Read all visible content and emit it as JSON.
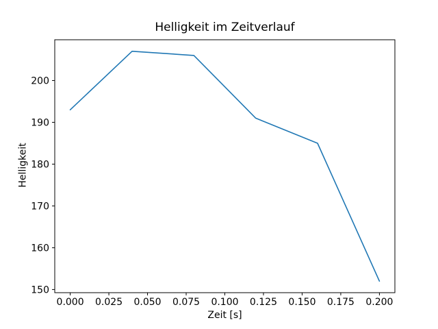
{
  "chart_data": {
    "type": "line",
    "title": "Helligkeit im Zeitverlauf",
    "xlabel": "Zeit [s]",
    "ylabel": "Helligkeit",
    "x": [
      0.0,
      0.04,
      0.08,
      0.12,
      0.16,
      0.2
    ],
    "series": [
      {
        "name": "Helligkeit",
        "values": [
          193,
          207,
          206,
          191,
          185,
          152
        ]
      }
    ],
    "x_ticks": [
      0.0,
      0.025,
      0.05,
      0.075,
      0.1,
      0.125,
      0.15,
      0.175,
      0.2
    ],
    "x_tick_labels": [
      "0.000",
      "0.025",
      "0.050",
      "0.075",
      "0.100",
      "0.125",
      "0.150",
      "0.175",
      "0.200"
    ],
    "y_ticks": [
      150,
      160,
      170,
      180,
      190,
      200
    ],
    "y_tick_labels": [
      "150",
      "160",
      "170",
      "180",
      "190",
      "200"
    ],
    "xlim": [
      -0.01,
      0.21
    ],
    "ylim": [
      149.25,
      209.75
    ],
    "line_color": "#1f77b4",
    "text_color": "#000000",
    "spine_color": "#000000",
    "background_color": "#ffffff",
    "grid": false,
    "legend_position": "none"
  }
}
